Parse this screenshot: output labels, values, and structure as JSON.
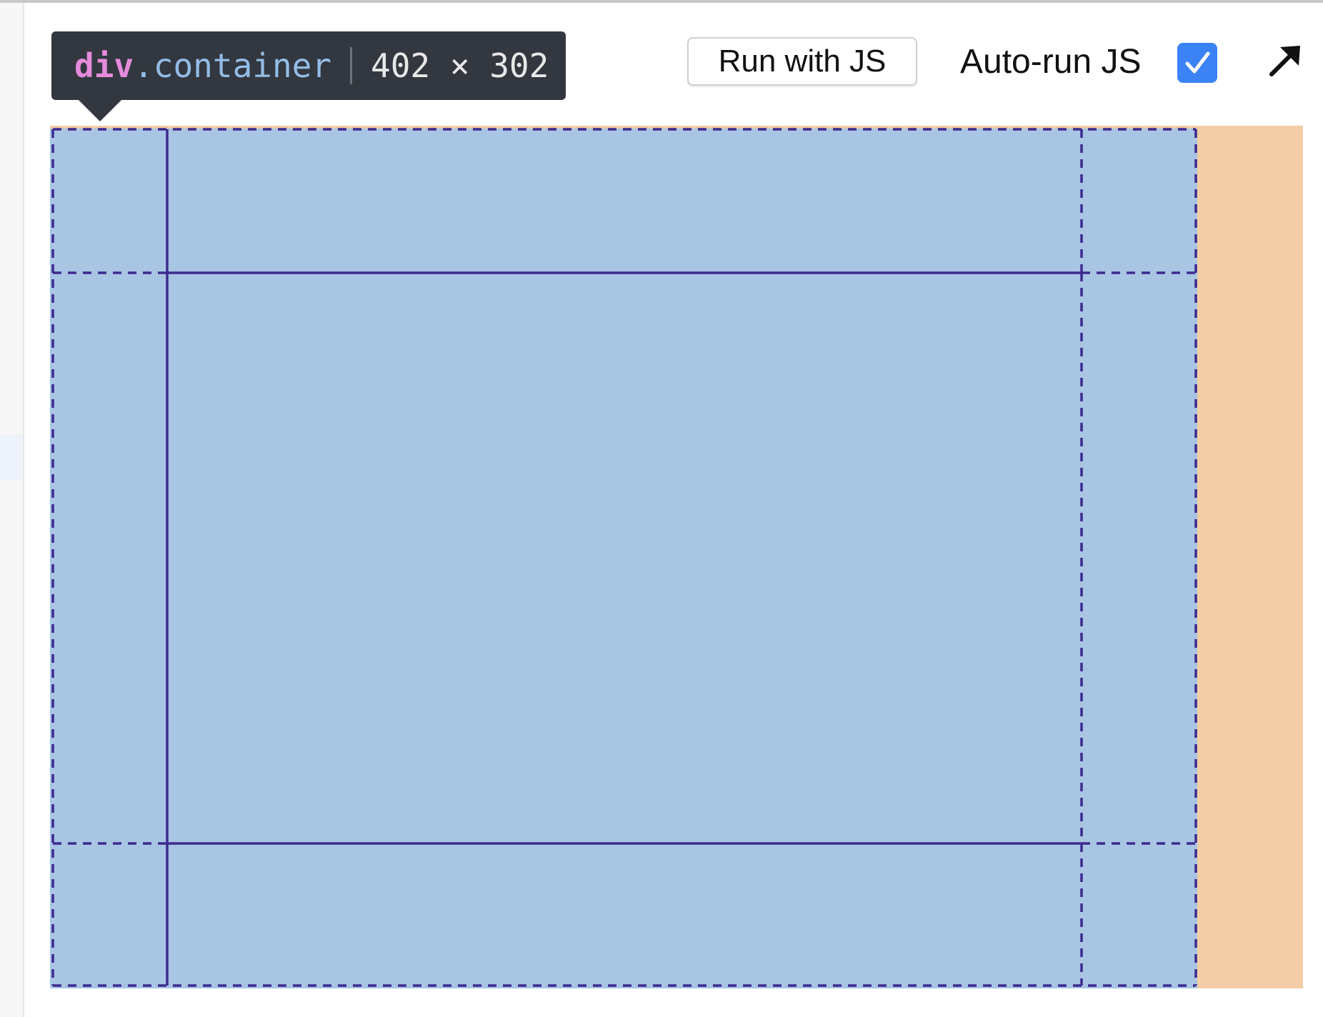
{
  "inspector_tooltip": {
    "tag": "div",
    "separator": ".",
    "class_name": "container",
    "dimensions": "402 × 302"
  },
  "toolbar": {
    "run_button_label": "Run with JS",
    "autorun_label": "Auto-run JS",
    "autorun_checked": true,
    "expand_icon": "arrow-up-right-icon"
  },
  "colors": {
    "tooltip_bg": "#33373f",
    "tag_color": "#e58bdb",
    "class_color": "#93bde8",
    "checkbox_accent": "#3b82f6",
    "container_fill": "#a8c5e4",
    "margin_fill": "#f2cda5",
    "grid_line_color": "#3d2a8f"
  }
}
